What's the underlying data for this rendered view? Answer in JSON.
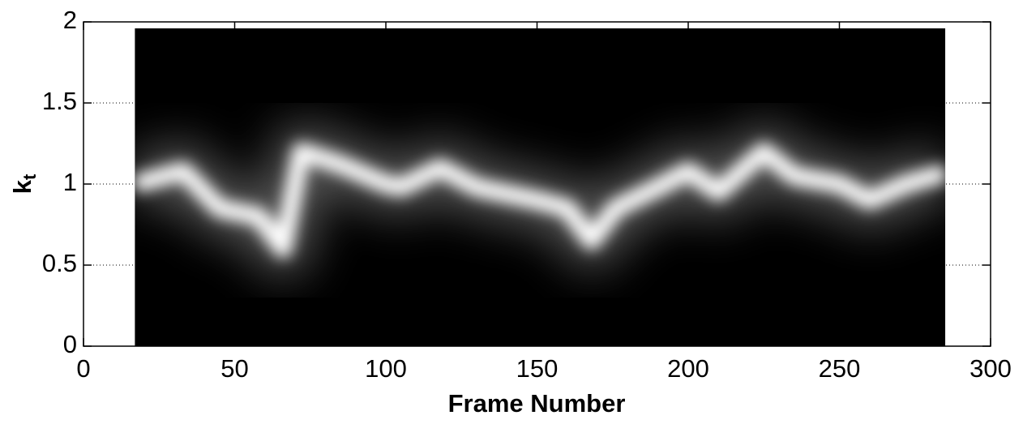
{
  "chart_data": {
    "type": "heatmap",
    "xlabel": "Frame Number",
    "ylabel": "k",
    "ylabel_sub": "t",
    "xlim": [
      0,
      300
    ],
    "ylim": [
      0,
      2
    ],
    "xticks": [
      0,
      50,
      100,
      150,
      200,
      250,
      300
    ],
    "yticks": [
      0,
      0.5,
      1,
      1.5,
      2
    ],
    "grid": true,
    "image_xlim": [
      17,
      285
    ],
    "image_ylim": [
      0,
      1.96
    ],
    "x": [
      17,
      33,
      45,
      58,
      66,
      72,
      85,
      100,
      105,
      118,
      130,
      150,
      160,
      168,
      176,
      190,
      200,
      210,
      225,
      235,
      250,
      260,
      272,
      285
    ],
    "values": [
      1.0,
      1.08,
      0.85,
      0.8,
      0.6,
      1.2,
      1.12,
      1.0,
      0.98,
      1.1,
      0.98,
      0.9,
      0.85,
      0.65,
      0.85,
      0.98,
      1.08,
      0.95,
      1.2,
      1.05,
      1.0,
      0.9,
      1.0,
      1.07
    ]
  }
}
